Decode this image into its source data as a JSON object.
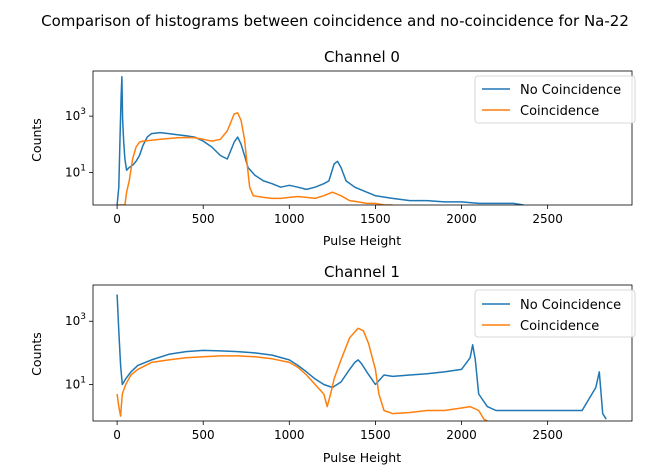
{
  "suptitle": "Comparison of histograms between coincidence and no-coincidence for Na-22",
  "colors": {
    "no_coincidence": "#1f77b4",
    "coincidence": "#ff7f0e"
  },
  "chart_data": [
    {
      "type": "line",
      "title": "Channel 0",
      "xlabel": "Pulse Height",
      "ylabel": "Counts",
      "yscale": "log",
      "xlim": [
        -140,
        2990
      ],
      "ylim": [
        0.7,
        40000
      ],
      "xticks": [
        0,
        500,
        1000,
        1500,
        2000,
        2500
      ],
      "yticks": [
        {
          "value": 10,
          "label": "10",
          "exp": "1"
        },
        {
          "value": 1000,
          "label": "10",
          "exp": "3"
        }
      ],
      "legend": "top-right",
      "series": [
        {
          "name": "No Coincidence",
          "color": "#1f77b4",
          "points": [
            [
              0,
              0.7
            ],
            [
              10,
              3
            ],
            [
              18,
              300
            ],
            [
              24,
              6000
            ],
            [
              28,
              25000
            ],
            [
              32,
              800
            ],
            [
              38,
              120
            ],
            [
              45,
              30
            ],
            [
              55,
              12
            ],
            [
              70,
              15
            ],
            [
              90,
              18
            ],
            [
              110,
              25
            ],
            [
              130,
              40
            ],
            [
              150,
              90
            ],
            [
              175,
              180
            ],
            [
              200,
              240
            ],
            [
              250,
              260
            ],
            [
              300,
              240
            ],
            [
              350,
              220
            ],
            [
              400,
              200
            ],
            [
              450,
              180
            ],
            [
              500,
              130
            ],
            [
              550,
              80
            ],
            [
              600,
              40
            ],
            [
              640,
              30
            ],
            [
              660,
              60
            ],
            [
              680,
              120
            ],
            [
              700,
              180
            ],
            [
              720,
              100
            ],
            [
              740,
              40
            ],
            [
              760,
              15
            ],
            [
              800,
              8
            ],
            [
              850,
              5
            ],
            [
              900,
              4
            ],
            [
              950,
              3
            ],
            [
              1000,
              3.5
            ],
            [
              1050,
              3
            ],
            [
              1100,
              2.5
            ],
            [
              1150,
              3
            ],
            [
              1200,
              4
            ],
            [
              1230,
              5
            ],
            [
              1260,
              20
            ],
            [
              1280,
              25
            ],
            [
              1300,
              15
            ],
            [
              1330,
              5
            ],
            [
              1380,
              3
            ],
            [
              1450,
              2
            ],
            [
              1500,
              1.5
            ],
            [
              1600,
              1.2
            ],
            [
              1700,
              1
            ],
            [
              1800,
              1
            ],
            [
              1900,
              0.9
            ],
            [
              2000,
              0.9
            ],
            [
              2100,
              0.8
            ],
            [
              2200,
              0.8
            ],
            [
              2300,
              0.8
            ],
            [
              2360,
              0.7
            ]
          ]
        },
        {
          "name": "Coincidence",
          "color": "#ff7f0e",
          "points": [
            [
              0,
              0.7
            ],
            [
              45,
              0.7
            ],
            [
              55,
              2
            ],
            [
              70,
              5
            ],
            [
              90,
              30
            ],
            [
              110,
              80
            ],
            [
              130,
              120
            ],
            [
              150,
              130
            ],
            [
              200,
              140
            ],
            [
              250,
              150
            ],
            [
              300,
              160
            ],
            [
              350,
              170
            ],
            [
              400,
              175
            ],
            [
              450,
              170
            ],
            [
              500,
              150
            ],
            [
              550,
              130
            ],
            [
              600,
              150
            ],
            [
              640,
              300
            ],
            [
              660,
              600
            ],
            [
              680,
              1200
            ],
            [
              700,
              1300
            ],
            [
              720,
              700
            ],
            [
              740,
              150
            ],
            [
              755,
              20
            ],
            [
              770,
              3
            ],
            [
              790,
              1.5
            ],
            [
              850,
              1.3
            ],
            [
              900,
              1.2
            ],
            [
              950,
              1.2
            ],
            [
              1000,
              1.3
            ],
            [
              1050,
              1.4
            ],
            [
              1100,
              1.3
            ],
            [
              1150,
              1.2
            ],
            [
              1200,
              1.5
            ],
            [
              1250,
              2
            ],
            [
              1300,
              1.5
            ],
            [
              1350,
              1
            ],
            [
              1400,
              0.9
            ],
            [
              1450,
              0.8
            ],
            [
              1500,
              0.8
            ],
            [
              1550,
              0.7
            ],
            [
              1600,
              0.7
            ]
          ]
        }
      ]
    },
    {
      "type": "line",
      "title": "Channel 1",
      "xlabel": "Pulse Height",
      "ylabel": "Counts",
      "yscale": "log",
      "xlim": [
        -140,
        2990
      ],
      "ylim": [
        0.7,
        14000
      ],
      "xticks": [
        0,
        500,
        1000,
        1500,
        2000,
        2500
      ],
      "yticks": [
        {
          "value": 10,
          "label": "10",
          "exp": "1"
        },
        {
          "value": 1000,
          "label": "10",
          "exp": "3"
        }
      ],
      "legend": "top-right",
      "series": [
        {
          "name": "No Coincidence",
          "color": "#1f77b4",
          "points": [
            [
              0,
              7000
            ],
            [
              10,
              500
            ],
            [
              20,
              40
            ],
            [
              30,
              10
            ],
            [
              50,
              15
            ],
            [
              80,
              25
            ],
            [
              120,
              40
            ],
            [
              200,
              60
            ],
            [
              300,
              90
            ],
            [
              400,
              110
            ],
            [
              500,
              120
            ],
            [
              600,
              115
            ],
            [
              700,
              110
            ],
            [
              800,
              100
            ],
            [
              900,
              85
            ],
            [
              1000,
              60
            ],
            [
              1050,
              40
            ],
            [
              1100,
              25
            ],
            [
              1150,
              15
            ],
            [
              1200,
              10
            ],
            [
              1250,
              8
            ],
            [
              1300,
              12
            ],
            [
              1350,
              30
            ],
            [
              1380,
              50
            ],
            [
              1400,
              60
            ],
            [
              1420,
              45
            ],
            [
              1450,
              25
            ],
            [
              1500,
              10
            ],
            [
              1550,
              20
            ],
            [
              1600,
              18
            ],
            [
              1700,
              20
            ],
            [
              1800,
              22
            ],
            [
              1900,
              25
            ],
            [
              2000,
              30
            ],
            [
              2050,
              70
            ],
            [
              2065,
              180
            ],
            [
              2080,
              60
            ],
            [
              2100,
              5
            ],
            [
              2150,
              2
            ],
            [
              2200,
              1.5
            ],
            [
              2300,
              1.5
            ],
            [
              2400,
              1.5
            ],
            [
              2500,
              1.5
            ],
            [
              2600,
              1.5
            ],
            [
              2700,
              1.5
            ],
            [
              2780,
              8
            ],
            [
              2800,
              25
            ],
            [
              2820,
              1.2
            ],
            [
              2840,
              0.8
            ]
          ]
        },
        {
          "name": "Coincidence",
          "color": "#ff7f0e",
          "points": [
            [
              0,
              5
            ],
            [
              10,
              2
            ],
            [
              20,
              1
            ],
            [
              30,
              5
            ],
            [
              50,
              10
            ],
            [
              80,
              20
            ],
            [
              120,
              30
            ],
            [
              200,
              50
            ],
            [
              300,
              60
            ],
            [
              400,
              70
            ],
            [
              500,
              75
            ],
            [
              600,
              80
            ],
            [
              700,
              80
            ],
            [
              800,
              75
            ],
            [
              900,
              65
            ],
            [
              1000,
              50
            ],
            [
              1050,
              35
            ],
            [
              1100,
              20
            ],
            [
              1150,
              10
            ],
            [
              1200,
              5
            ],
            [
              1220,
              2
            ],
            [
              1240,
              5
            ],
            [
              1260,
              15
            ],
            [
              1300,
              60
            ],
            [
              1350,
              300
            ],
            [
              1400,
              600
            ],
            [
              1430,
              500
            ],
            [
              1460,
              200
            ],
            [
              1500,
              30
            ],
            [
              1520,
              5
            ],
            [
              1550,
              1.5
            ],
            [
              1600,
              1.2
            ],
            [
              1700,
              1.3
            ],
            [
              1800,
              1.5
            ],
            [
              1900,
              1.5
            ],
            [
              2000,
              1.8
            ],
            [
              2050,
              2
            ],
            [
              2100,
              1.5
            ],
            [
              2130,
              0.8
            ],
            [
              2150,
              0.7
            ]
          ]
        }
      ]
    }
  ]
}
